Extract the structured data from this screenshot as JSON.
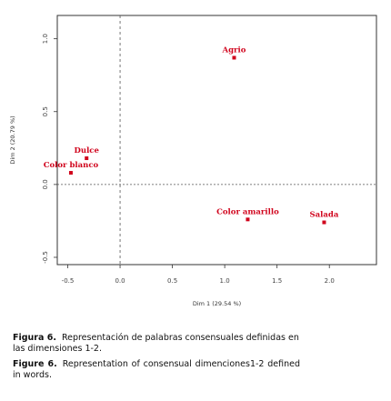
{
  "chart_data": {
    "type": "scatter",
    "xlabel": "Dim 1 (29.54 %)",
    "ylabel": "Dim 2 (20.79 %)",
    "xlim": [
      -0.6,
      2.45
    ],
    "ylim": [
      -0.55,
      1.16
    ],
    "x_ticks": [
      -0.5,
      0.0,
      0.5,
      1.0,
      1.5,
      2.0
    ],
    "x_tick_labels": [
      "-0.5",
      "0.0",
      "0.5",
      "1.0",
      "1.5",
      "2.0"
    ],
    "y_ticks": [
      -0.5,
      0.0,
      0.5,
      1.0
    ],
    "y_tick_labels": [
      "-0.5",
      "0.0",
      "0.5",
      "1.0"
    ],
    "reference_lines": {
      "x": 0.0,
      "y": 0.0,
      "style": "dashed"
    },
    "grid": false,
    "marker_color": "#d0021b",
    "points": [
      {
        "label": "Agrio",
        "x": 1.09,
        "y": 0.87
      },
      {
        "label": "Dulce",
        "x": -0.32,
        "y": 0.18
      },
      {
        "label": "Color blanco",
        "x": -0.47,
        "y": 0.08
      },
      {
        "label": "Color amarillo",
        "x": 1.22,
        "y": -0.24
      },
      {
        "label": "Salada",
        "x": 1.95,
        "y": -0.26
      }
    ]
  },
  "caption": {
    "es_prefix": "Figura 6.",
    "es_text": "Representación de palabras consensuales definidas en las dimensiones 1-2.",
    "en_prefix": "Figure 6.",
    "en_text": "Representation of consensual dimenciones1-2 defined in words."
  }
}
